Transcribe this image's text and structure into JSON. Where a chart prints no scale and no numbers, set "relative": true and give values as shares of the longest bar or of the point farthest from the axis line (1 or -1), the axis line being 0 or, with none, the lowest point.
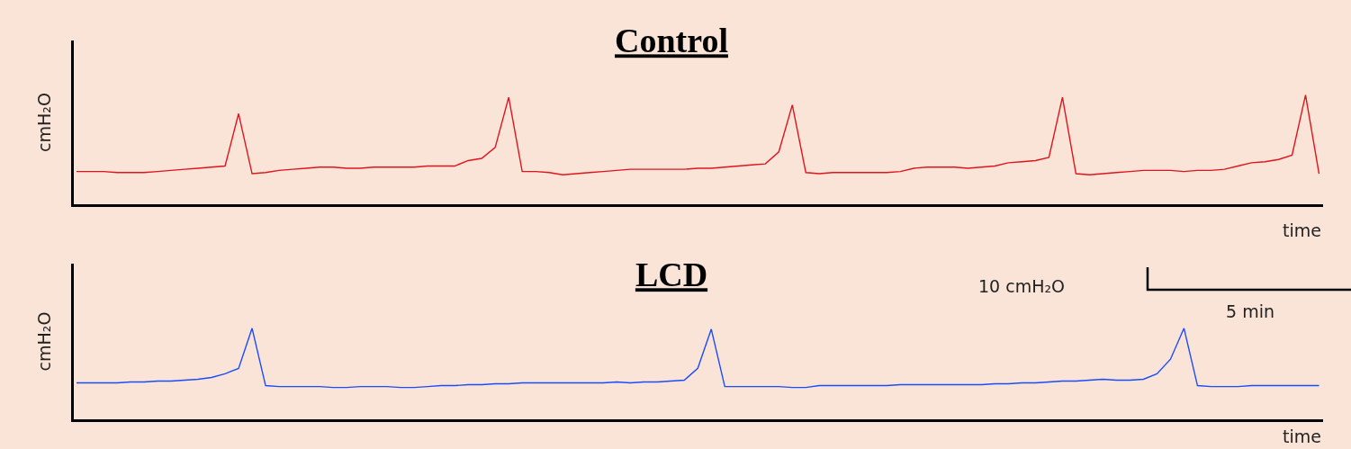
{
  "chart_data": [
    {
      "type": "line",
      "title": "Control",
      "ylabel": "cmH₂O",
      "xlabel": "time",
      "relative": true,
      "categories": [
        null,
        null,
        null,
        null,
        null,
        null,
        null,
        null,
        null,
        null,
        null,
        null,
        null,
        null,
        null,
        null,
        null,
        null,
        null,
        null,
        null,
        null,
        null,
        null,
        null,
        null,
        null,
        null,
        null,
        null,
        null,
        null,
        null,
        null,
        null,
        null,
        null,
        null,
        null,
        null,
        null,
        null,
        null,
        null,
        null,
        null,
        null,
        null,
        null,
        null,
        null,
        null,
        null,
        null,
        null,
        null,
        null,
        null,
        null,
        null,
        null,
        null,
        null,
        null,
        null,
        null,
        null,
        null,
        null,
        null,
        null,
        null,
        null,
        null,
        null,
        null,
        null,
        null,
        null,
        null,
        null,
        null,
        null,
        null,
        null,
        null,
        null,
        null,
        null,
        null,
        null,
        null,
        null
      ],
      "series": [
        {
          "color": "#e0141e",
          "values": [
            0.3,
            0.3,
            0.3,
            0.29,
            0.29,
            0.29,
            0.3,
            0.31,
            0.32,
            0.33,
            0.34,
            0.35,
            0.83,
            0.28,
            0.29,
            0.31,
            0.32,
            0.33,
            0.34,
            0.34,
            0.33,
            0.33,
            0.34,
            0.34,
            0.34,
            0.34,
            0.35,
            0.35,
            0.35,
            0.4,
            0.42,
            0.52,
            0.98,
            0.3,
            0.3,
            0.29,
            0.27,
            0.28,
            0.29,
            0.3,
            0.31,
            0.32,
            0.32,
            0.32,
            0.32,
            0.32,
            0.33,
            0.33,
            0.34,
            0.35,
            0.36,
            0.37,
            0.48,
            0.91,
            0.29,
            0.28,
            0.29,
            0.29,
            0.29,
            0.29,
            0.29,
            0.3,
            0.33,
            0.34,
            0.34,
            0.34,
            0.33,
            0.34,
            0.35,
            0.38,
            0.39,
            0.4,
            0.43,
            0.98,
            0.28,
            0.27,
            0.28,
            0.29,
            0.3,
            0.31,
            0.31,
            0.31,
            0.3,
            0.31,
            0.31,
            0.32,
            0.35,
            0.38,
            0.39,
            0.41,
            0.45,
            1.0,
            0.28
          ]
        }
      ]
    },
    {
      "type": "line",
      "title": "LCD",
      "ylabel": "cmH₂O",
      "xlabel": "time",
      "relative": true,
      "categories": [
        null,
        null,
        null,
        null,
        null,
        null,
        null,
        null,
        null,
        null,
        null,
        null,
        null,
        null,
        null,
        null,
        null,
        null,
        null,
        null,
        null,
        null,
        null,
        null,
        null,
        null,
        null,
        null,
        null,
        null,
        null,
        null,
        null,
        null,
        null,
        null,
        null,
        null,
        null,
        null,
        null,
        null,
        null,
        null,
        null,
        null,
        null,
        null,
        null,
        null,
        null,
        null,
        null,
        null,
        null,
        null,
        null,
        null,
        null,
        null,
        null,
        null,
        null,
        null,
        null,
        null,
        null,
        null,
        null,
        null,
        null,
        null,
        null,
        null,
        null,
        null,
        null,
        null,
        null,
        null,
        null,
        null,
        null,
        null,
        null,
        null,
        null,
        null,
        null,
        null,
        null,
        null,
        null
      ],
      "series": [
        {
          "color": "#1a4cff",
          "values": [
            0.4,
            0.4,
            0.4,
            0.4,
            0.41,
            0.41,
            0.42,
            0.42,
            0.43,
            0.44,
            0.46,
            0.5,
            0.56,
            1.0,
            0.37,
            0.36,
            0.36,
            0.36,
            0.36,
            0.35,
            0.35,
            0.36,
            0.36,
            0.36,
            0.35,
            0.35,
            0.36,
            0.37,
            0.37,
            0.38,
            0.38,
            0.39,
            0.39,
            0.4,
            0.4,
            0.4,
            0.4,
            0.4,
            0.4,
            0.4,
            0.41,
            0.4,
            0.41,
            0.41,
            0.42,
            0.43,
            0.56,
            0.99,
            0.36,
            0.36,
            0.36,
            0.36,
            0.36,
            0.35,
            0.35,
            0.37,
            0.37,
            0.37,
            0.37,
            0.37,
            0.37,
            0.38,
            0.38,
            0.38,
            0.38,
            0.38,
            0.38,
            0.38,
            0.39,
            0.39,
            0.4,
            0.4,
            0.41,
            0.42,
            0.42,
            0.43,
            0.44,
            0.43,
            0.43,
            0.44,
            0.5,
            0.66,
            1.0,
            0.37,
            0.36,
            0.36,
            0.36,
            0.37,
            0.37,
            0.37,
            0.37,
            0.37,
            0.37
          ]
        }
      ],
      "annotations": [
        "10 cmH₂O",
        "5 min"
      ]
    }
  ]
}
